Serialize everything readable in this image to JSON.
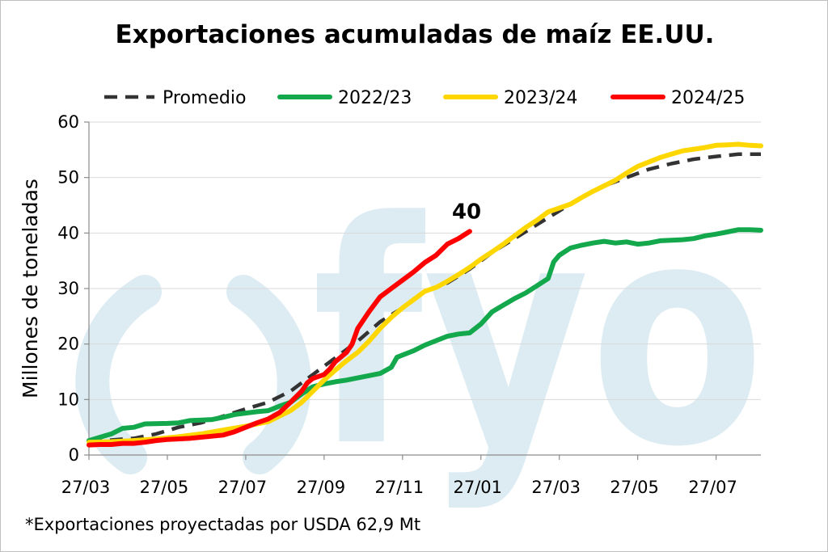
{
  "chart_data": {
    "type": "line",
    "title": "Exportaciones acumuladas de maíz EE.UU.",
    "ylabel": "Millones de toneladas",
    "xlabel": "",
    "ylim": [
      0,
      60
    ],
    "yticks": [
      0,
      10,
      20,
      30,
      40,
      50,
      60
    ],
    "xlim": [
      0,
      60
    ],
    "xticks": [
      {
        "x": 0,
        "label": "27/03"
      },
      {
        "x": 7,
        "label": "27/05"
      },
      {
        "x": 14,
        "label": "27/07"
      },
      {
        "x": 21,
        "label": "27/09"
      },
      {
        "x": 28,
        "label": "27/11"
      },
      {
        "x": 35,
        "label": "27/01"
      },
      {
        "x": 42,
        "label": "27/03"
      },
      {
        "x": 49,
        "label": "27/05"
      },
      {
        "x": 56,
        "label": "27/07"
      }
    ],
    "grid": true,
    "legend_position": "top",
    "series": [
      {
        "name": "Promedio",
        "color": "#333333",
        "dash": true,
        "points": [
          [
            0,
            2.4
          ],
          [
            2,
            2.7
          ],
          [
            4,
            3.0
          ],
          [
            6,
            3.8
          ],
          [
            8,
            5.0
          ],
          [
            10,
            5.8
          ],
          [
            12,
            7.0
          ],
          [
            14,
            8.3
          ],
          [
            16,
            9.5
          ],
          [
            18,
            11.5
          ],
          [
            20,
            14.5
          ],
          [
            22,
            17.5
          ],
          [
            24,
            20.5
          ],
          [
            26,
            24.0
          ],
          [
            28,
            26.5
          ],
          [
            30,
            29.5
          ],
          [
            32,
            31.0
          ],
          [
            34,
            33.5
          ],
          [
            36,
            36.5
          ],
          [
            38,
            39.0
          ],
          [
            40,
            41.5
          ],
          [
            42,
            44.0
          ],
          [
            44,
            46.5
          ],
          [
            46,
            48.5
          ],
          [
            48,
            50.0
          ],
          [
            50,
            51.5
          ],
          [
            52,
            52.5
          ],
          [
            54,
            53.3
          ],
          [
            56,
            53.8
          ],
          [
            58,
            54.2
          ],
          [
            60,
            54.2
          ]
        ]
      },
      {
        "name": "2022/23",
        "color": "#12a84b",
        "dash": false,
        "points": [
          [
            0,
            2.6
          ],
          [
            1,
            3.2
          ],
          [
            2,
            3.8
          ],
          [
            3,
            4.8
          ],
          [
            4,
            5.0
          ],
          [
            5,
            5.6
          ],
          [
            7,
            5.7
          ],
          [
            8,
            5.8
          ],
          [
            9,
            6.2
          ],
          [
            11,
            6.4
          ],
          [
            12,
            6.8
          ],
          [
            13,
            7.3
          ],
          [
            15,
            7.8
          ],
          [
            16,
            8.0
          ],
          [
            17,
            8.8
          ],
          [
            18,
            9.5
          ],
          [
            19,
            11.0
          ],
          [
            20,
            12.3
          ],
          [
            21,
            12.8
          ],
          [
            22,
            13.2
          ],
          [
            23,
            13.5
          ],
          [
            24,
            13.9
          ],
          [
            25,
            14.3
          ],
          [
            26,
            14.7
          ],
          [
            27,
            15.8
          ],
          [
            27.5,
            17.6
          ],
          [
            29,
            18.8
          ],
          [
            30,
            19.8
          ],
          [
            31,
            20.6
          ],
          [
            32,
            21.4
          ],
          [
            33,
            21.8
          ],
          [
            34,
            22.0
          ],
          [
            35,
            23.6
          ],
          [
            36,
            25.8
          ],
          [
            37,
            27.0
          ],
          [
            38,
            28.2
          ],
          [
            39,
            29.2
          ],
          [
            40,
            30.5
          ],
          [
            41,
            31.8
          ],
          [
            41.5,
            34.8
          ],
          [
            42,
            36.0
          ],
          [
            43,
            37.3
          ],
          [
            44,
            37.8
          ],
          [
            45,
            38.2
          ],
          [
            46,
            38.5
          ],
          [
            47,
            38.2
          ],
          [
            48,
            38.4
          ],
          [
            49,
            38.0
          ],
          [
            50,
            38.2
          ],
          [
            51,
            38.6
          ],
          [
            52,
            38.7
          ],
          [
            53,
            38.8
          ],
          [
            54,
            39.0
          ],
          [
            55,
            39.5
          ],
          [
            56,
            39.8
          ],
          [
            57,
            40.2
          ],
          [
            58,
            40.6
          ],
          [
            59,
            40.6
          ],
          [
            60,
            40.5
          ]
        ]
      },
      {
        "name": "2023/24",
        "color": "#ffd700",
        "dash": false,
        "points": [
          [
            0,
            2.3
          ],
          [
            2,
            2.4
          ],
          [
            4,
            2.6
          ],
          [
            6,
            2.9
          ],
          [
            8,
            3.3
          ],
          [
            10,
            3.8
          ],
          [
            12,
            4.5
          ],
          [
            14,
            5.2
          ],
          [
            16,
            6.0
          ],
          [
            17,
            7.0
          ],
          [
            18,
            8.0
          ],
          [
            19,
            9.5
          ],
          [
            20,
            11.5
          ],
          [
            21,
            13.5
          ],
          [
            22,
            15.3
          ],
          [
            23,
            17.0
          ],
          [
            24,
            18.5
          ],
          [
            25,
            20.5
          ],
          [
            26,
            22.8
          ],
          [
            27,
            24.8
          ],
          [
            28,
            26.5
          ],
          [
            29,
            28.0
          ],
          [
            30,
            29.5
          ],
          [
            31,
            30.2
          ],
          [
            32,
            31.3
          ],
          [
            33,
            32.5
          ],
          [
            34,
            33.8
          ],
          [
            35,
            35.3
          ],
          [
            36,
            36.6
          ],
          [
            37,
            38.0
          ],
          [
            38,
            39.5
          ],
          [
            39,
            41.0
          ],
          [
            40,
            42.3
          ],
          [
            41,
            43.8
          ],
          [
            42,
            44.5
          ],
          [
            43,
            45.2
          ],
          [
            44,
            46.4
          ],
          [
            45,
            47.5
          ],
          [
            46,
            48.5
          ],
          [
            47,
            49.5
          ],
          [
            48,
            50.8
          ],
          [
            49,
            52.0
          ],
          [
            50,
            52.8
          ],
          [
            51,
            53.6
          ],
          [
            52,
            54.2
          ],
          [
            53,
            54.8
          ],
          [
            54,
            55.1
          ],
          [
            55,
            55.4
          ],
          [
            56,
            55.8
          ],
          [
            57,
            55.9
          ],
          [
            58,
            56.0
          ],
          [
            59,
            55.8
          ],
          [
            60,
            55.7
          ]
        ]
      },
      {
        "name": "2024/25",
        "color": "#ff0000",
        "dash": false,
        "points": [
          [
            0,
            1.8
          ],
          [
            1,
            1.9
          ],
          [
            2,
            1.9
          ],
          [
            3,
            2.1
          ],
          [
            4,
            2.1
          ],
          [
            5,
            2.3
          ],
          [
            6,
            2.6
          ],
          [
            7,
            2.8
          ],
          [
            8,
            2.9
          ],
          [
            9,
            3.0
          ],
          [
            10,
            3.2
          ],
          [
            11,
            3.4
          ],
          [
            12,
            3.6
          ],
          [
            13,
            4.2
          ],
          [
            14,
            5.0
          ],
          [
            15,
            5.8
          ],
          [
            16,
            6.5
          ],
          [
            17,
            7.6
          ],
          [
            18,
            9.5
          ],
          [
            19,
            11.5
          ],
          [
            19.5,
            13.0
          ],
          [
            20,
            13.8
          ],
          [
            21,
            14.5
          ],
          [
            21.5,
            15.5
          ],
          [
            22,
            16.8
          ],
          [
            23,
            18.5
          ],
          [
            23.5,
            20.0
          ],
          [
            24,
            22.8
          ],
          [
            25,
            25.8
          ],
          [
            26,
            28.5
          ],
          [
            27,
            30.0
          ],
          [
            28,
            31.5
          ],
          [
            29,
            33.0
          ],
          [
            30,
            34.7
          ],
          [
            31,
            36.0
          ],
          [
            32,
            38.0
          ],
          [
            33,
            39.0
          ],
          [
            34,
            40.3
          ]
        ]
      }
    ],
    "annotations": [
      {
        "text": "40",
        "x": 33,
        "y": 42.6
      }
    ]
  },
  "footnote": "*Exportaciones proyectadas por USDA 62,9 Mt",
  "watermark": "fyo"
}
